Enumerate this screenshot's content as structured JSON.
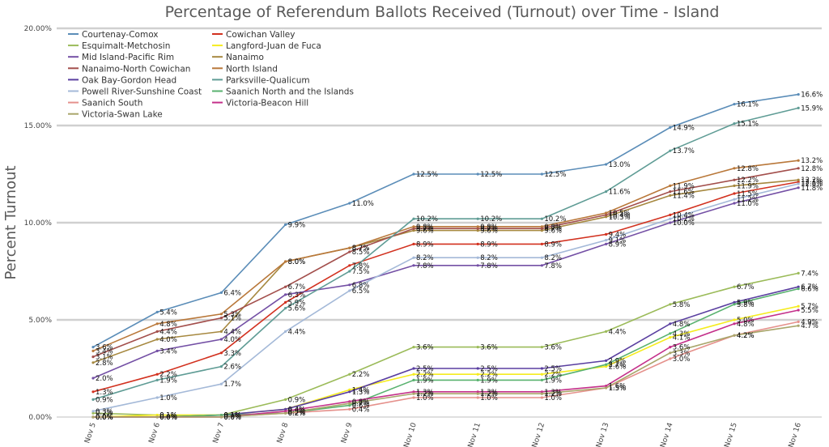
{
  "chart_data": {
    "type": "line",
    "title": "Percentage of Referendum Ballots Received (Turnout) over Time - Island",
    "xlabel": "",
    "ylabel": "Percent Turnout",
    "ylim": [
      0,
      20
    ],
    "yticks": [
      "0.00%",
      "5.00%",
      "10.00%",
      "15.00%",
      "20.00%"
    ],
    "categories": [
      "Nov 5",
      "Nov 6",
      "Nov 7",
      "Nov 8",
      "Nov 9",
      "Nov 10",
      "Nov 11",
      "Nov 12",
      "Nov 13",
      "Nov 14",
      "Nov 15",
      "Nov 16"
    ],
    "grid": true,
    "legend_position": "top-left",
    "series": [
      {
        "name": "Courtenay-Comox",
        "color": "#5b8db8",
        "values": [
          3.6,
          5.4,
          6.4,
          9.9,
          11.0,
          12.5,
          12.5,
          12.5,
          13.0,
          14.9,
          16.1,
          16.6
        ]
      },
      {
        "name": "Cowichan Valley",
        "color": "#d2311f",
        "values": [
          1.3,
          2.2,
          3.3,
          5.9,
          7.8,
          8.9,
          8.9,
          8.9,
          9.4,
          10.4,
          11.5,
          12.1
        ]
      },
      {
        "name": "Esquimalt-Metchosin",
        "color": "#9bbb59",
        "values": [
          0.2,
          0.1,
          0.1,
          0.9,
          2.2,
          3.6,
          3.6,
          3.6,
          4.4,
          5.8,
          6.7,
          7.4
        ]
      },
      {
        "name": "Langford-Juan de Fuca",
        "color": "#f5ec1f",
        "values": [
          0.0,
          0.1,
          0.1,
          0.4,
          1.4,
          2.2,
          2.2,
          2.2,
          2.6,
          4.1,
          5.0,
          5.7
        ]
      },
      {
        "name": "Mid Island-Pacific Rim",
        "color": "#7450a5",
        "values": [
          2.0,
          3.4,
          4.0,
          6.3,
          6.8,
          7.8,
          7.8,
          7.8,
          8.9,
          10.0,
          11.0,
          11.8
        ]
      },
      {
        "name": "Nanaimo",
        "color": "#a6883f",
        "values": [
          2.8,
          4.0,
          4.4,
          8.0,
          8.7,
          9.6,
          9.6,
          9.6,
          10.3,
          11.4,
          11.9,
          12.2
        ]
      },
      {
        "name": "Nanaimo-North Cowichan",
        "color": "#a34f4c",
        "values": [
          3.1,
          4.4,
          5.1,
          6.7,
          8.5,
          9.7,
          9.7,
          9.7,
          10.4,
          11.6,
          12.2,
          12.8
        ]
      },
      {
        "name": "North Island",
        "color": "#b9783a",
        "values": [
          3.4,
          4.8,
          5.3,
          8.0,
          8.7,
          9.8,
          9.8,
          9.8,
          10.5,
          11.9,
          12.8,
          13.2
        ]
      },
      {
        "name": "Oak Bay-Gordon Head",
        "color": "#5a3fa0",
        "values": [
          0.0,
          0.0,
          0.1,
          0.4,
          1.3,
          2.5,
          2.5,
          2.5,
          2.9,
          4.8,
          5.9,
          6.7
        ]
      },
      {
        "name": "Parksville-Qualicum",
        "color": "#5f9c95",
        "values": [
          0.9,
          1.9,
          2.6,
          5.6,
          7.5,
          10.2,
          10.2,
          10.2,
          11.6,
          13.7,
          15.1,
          15.9
        ]
      },
      {
        "name": "Powell River-Sunshine Coast",
        "color": "#a4b9d8",
        "values": [
          0.3,
          1.0,
          1.7,
          4.4,
          6.5,
          8.2,
          8.2,
          8.2,
          9.1,
          10.2,
          11.2,
          12.0
        ]
      },
      {
        "name": "Saanich North and the Islands",
        "color": "#59b26f",
        "values": [
          0.0,
          0.0,
          0.1,
          0.2,
          0.6,
          1.9,
          1.9,
          1.9,
          2.7,
          4.3,
          5.8,
          6.6
        ]
      },
      {
        "name": "Saanich South",
        "color": "#e5918c",
        "values": [
          0.0,
          0.0,
          0.0,
          0.2,
          0.4,
          1.0,
          1.0,
          1.0,
          1.5,
          3.0,
          4.2,
          4.9
        ]
      },
      {
        "name": "Victoria-Beacon Hill",
        "color": "#c4308a",
        "values": [
          0.0,
          0.0,
          0.0,
          0.3,
          0.8,
          1.3,
          1.3,
          1.3,
          1.6,
          3.6,
          4.8,
          5.5
        ]
      },
      {
        "name": "Victoria-Swan Lake",
        "color": "#a9a66b",
        "values": [
          0.0,
          0.0,
          0.0,
          0.2,
          0.7,
          1.2,
          1.2,
          1.2,
          1.5,
          3.3,
          4.2,
          4.7
        ]
      }
    ]
  }
}
